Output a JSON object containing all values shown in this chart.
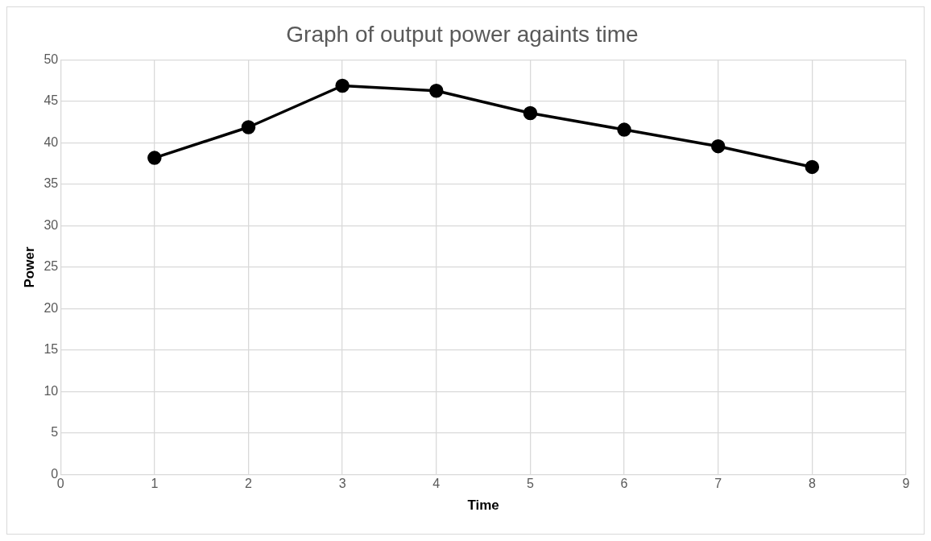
{
  "chart_data": {
    "type": "line",
    "title": "Graph of output power againts time",
    "xlabel": "Time",
    "ylabel": "Power",
    "x": [
      1,
      2,
      3,
      4,
      5,
      6,
      7,
      8
    ],
    "series": [
      {
        "color": "#000000",
        "values": [
          38.2,
          41.9,
          46.9,
          46.3,
          43.6,
          41.6,
          39.6,
          37.1
        ]
      }
    ],
    "xlim": [
      0,
      9
    ],
    "xticks": [
      0,
      1,
      2,
      3,
      4,
      5,
      6,
      7,
      8,
      9
    ],
    "ylim": [
      0,
      50
    ],
    "yticks": [
      0,
      5,
      10,
      15,
      20,
      25,
      30,
      35,
      40,
      45,
      50
    ],
    "grid": true,
    "legend": false,
    "marker": "circle",
    "line_style": "solid"
  }
}
